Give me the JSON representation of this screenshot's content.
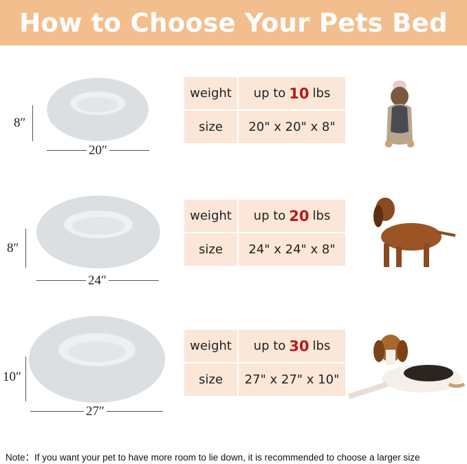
{
  "title": "How to Choose Your Pets Bed",
  "beds": [
    {
      "height_label": "8″",
      "width_label": "20″",
      "weight_label": "weight",
      "weight_prefix": "up to",
      "weight_value": "10",
      "weight_unit": "lbs",
      "size_label": "size",
      "size_value": "20\" x 20\" x 8\"",
      "dog": "yorkshire-terrier"
    },
    {
      "height_label": "8″",
      "width_label": "24″",
      "weight_label": "weight",
      "weight_prefix": "up to",
      "weight_value": "20",
      "weight_unit": "lbs",
      "size_label": "size",
      "size_value": "24\" x 24\" x 8\"",
      "dog": "dachshund"
    },
    {
      "height_label": "10″",
      "width_label": "27″",
      "weight_label": "weight",
      "weight_prefix": "up to",
      "weight_value": "30",
      "weight_unit": "lbs",
      "size_label": "size",
      "size_value": "27\" x 27\" x 10\"",
      "dog": "beagle"
    }
  ],
  "note": "Note：If you want your pet to have more room to lie down, it is recommended to choose a larger size",
  "colors": {
    "header": "#f3be8d",
    "cell": "#fbe6d8",
    "accent": "#b31b1b",
    "bed": "#dfe2e4"
  }
}
